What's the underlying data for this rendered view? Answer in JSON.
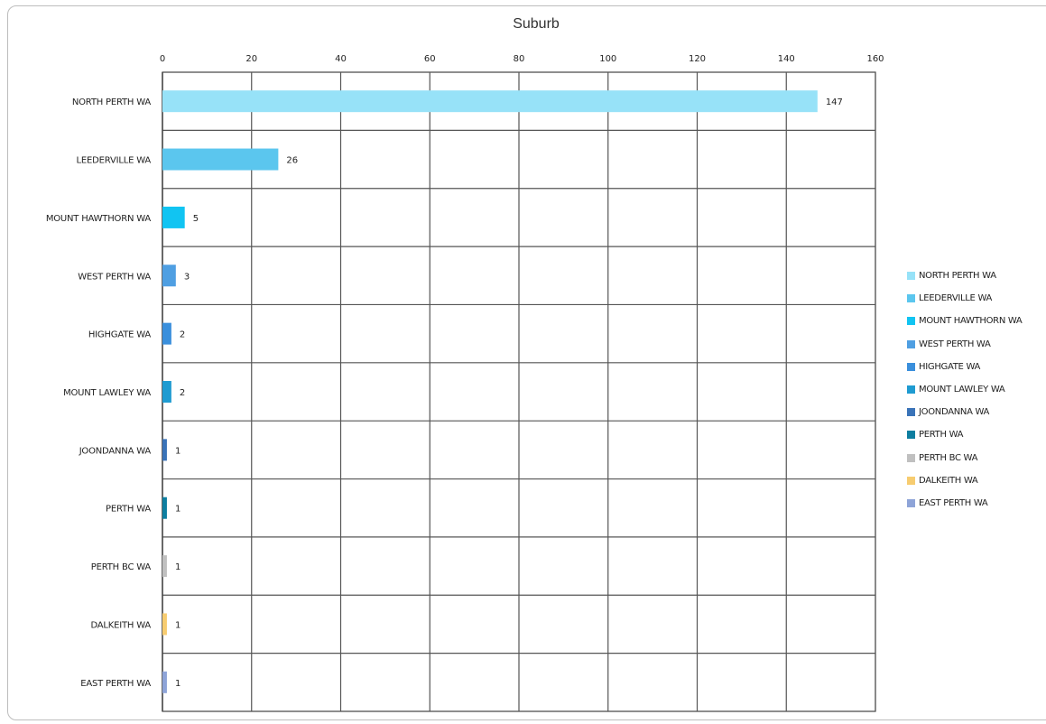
{
  "chart_data": {
    "type": "bar",
    "orientation": "horizontal",
    "title": "Suburb",
    "categories": [
      "NORTH PERTH WA",
      "LEEDERVILLE WA",
      "MOUNT HAWTHORN WA",
      "WEST PERTH WA",
      "HIGHGATE WA",
      "MOUNT LAWLEY WA",
      "JOONDANNA WA",
      "PERTH WA",
      "PERTH BC WA",
      "DALKEITH WA",
      "EAST PERTH WA"
    ],
    "values": [
      147,
      26,
      5,
      3,
      2,
      2,
      1,
      1,
      1,
      1,
      1
    ],
    "colors": [
      "#97e2f8",
      "#5bc6ee",
      "#11c4f2",
      "#4f9fe2",
      "#3a8fdc",
      "#1f9bd1",
      "#3a73b8",
      "#0e7ea0",
      "#c0c0c0",
      "#f7cc70",
      "#8ea4d8"
    ],
    "xlim": [
      0,
      160
    ],
    "xticks": [
      0,
      20,
      40,
      60,
      80,
      100,
      120,
      140,
      160
    ],
    "xaxis_position": "top",
    "grid": true,
    "data_labels": true,
    "legend": "right"
  }
}
